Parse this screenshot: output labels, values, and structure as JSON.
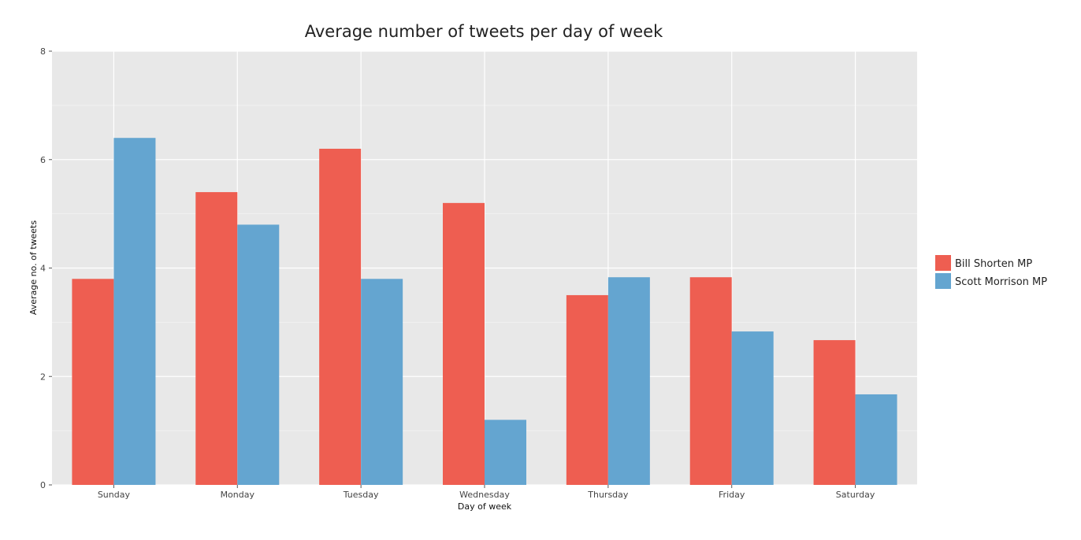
{
  "chart_data": {
    "type": "bar",
    "title": "Average number of tweets per day of week",
    "xlabel": "Day of week",
    "ylabel": "Average no. of tweets",
    "ylim": [
      0,
      8
    ],
    "yticks": [
      0,
      2,
      4,
      6,
      8
    ],
    "grid": true,
    "legend_position": "right",
    "categories": [
      "Sunday",
      "Monday",
      "Tuesday",
      "Wednesday",
      "Thursday",
      "Friday",
      "Saturday"
    ],
    "series": [
      {
        "name": "Bill Shorten MP",
        "color": "#ee5e51",
        "values": [
          3.8,
          5.4,
          6.2,
          5.2,
          3.5,
          3.83,
          2.67
        ]
      },
      {
        "name": "Scott Morrison MP",
        "color": "#64a5d0",
        "values": [
          6.4,
          4.8,
          3.8,
          1.2,
          3.83,
          2.83,
          1.67
        ]
      }
    ]
  }
}
